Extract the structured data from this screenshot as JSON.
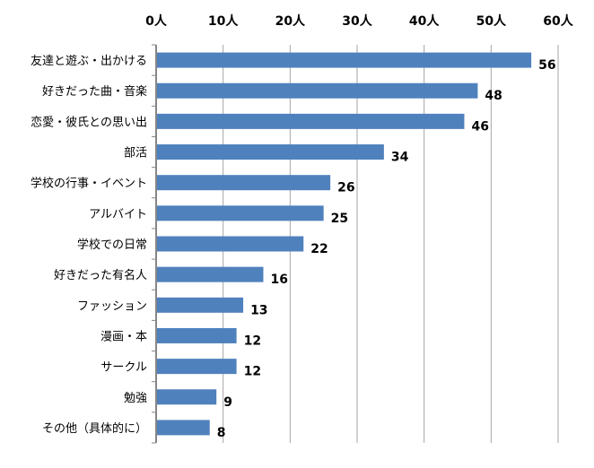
{
  "chart_data": {
    "type": "bar",
    "orientation": "horizontal",
    "categories": [
      "友達と遊ぶ・出かける",
      "好きだった曲・音楽",
      "恋愛・彼氏との思い出",
      "部活",
      "学校の行事・イベント",
      "アルバイト",
      "学校での日常",
      "好きだった有名人",
      "ファッション",
      "漫画・本",
      "サークル",
      "勉強",
      "その他（具体的に）"
    ],
    "values": [
      56,
      48,
      46,
      34,
      26,
      25,
      22,
      16,
      13,
      12,
      12,
      9,
      8
    ],
    "xlim": [
      0,
      60
    ],
    "xticks": [
      0,
      10,
      20,
      30,
      40,
      50,
      60
    ],
    "tick_labels": [
      "0人",
      "10人",
      "20人",
      "30人",
      "40人",
      "50人",
      "60人"
    ],
    "axis_position": "top",
    "grid": true,
    "data_labels": true,
    "bar_color": "#4F81BD",
    "grid_color": "#A6A6A6"
  }
}
